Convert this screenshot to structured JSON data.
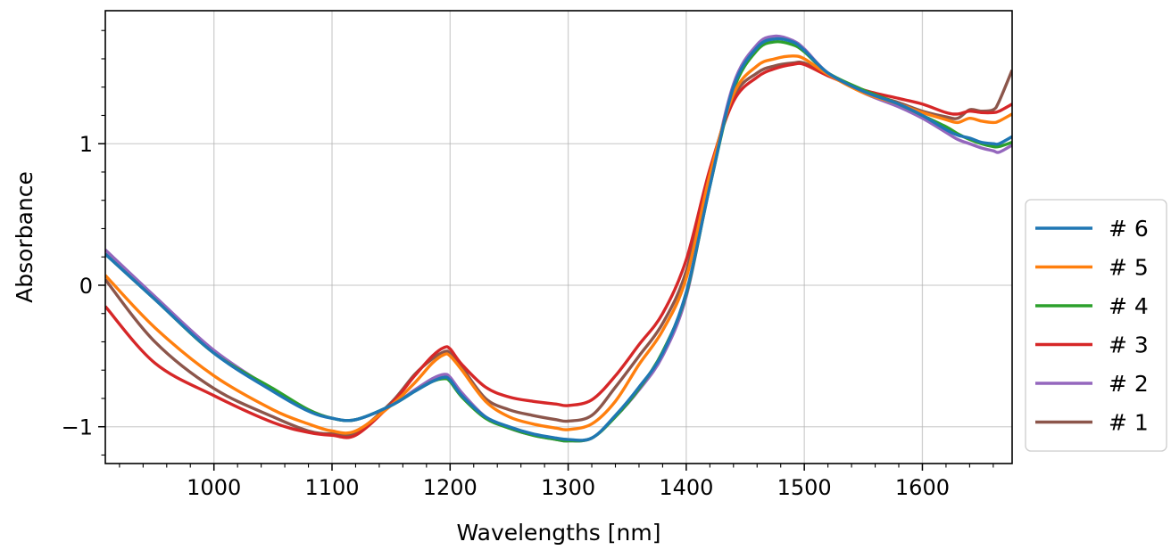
{
  "chart_data": {
    "type": "line",
    "title": "",
    "xlabel": "Wavelengths [nm]",
    "ylabel": "Absorbance",
    "xlim": [
      908,
      1676
    ],
    "ylim": [
      -1.26,
      1.94
    ],
    "xticks": [
      1000,
      1100,
      1200,
      1300,
      1400,
      1500,
      1600
    ],
    "xtick_labels": [
      "1000",
      "1100",
      "1200",
      "1300",
      "1400",
      "1500",
      "1600"
    ],
    "yticks": [
      -1,
      0,
      1
    ],
    "ytick_labels": [
      "−1",
      "0",
      "1"
    ],
    "grid": true,
    "legend_position": "right-outside",
    "x": [
      908,
      950,
      1000,
      1050,
      1080,
      1100,
      1120,
      1150,
      1170,
      1185,
      1195,
      1200,
      1210,
      1230,
      1250,
      1270,
      1290,
      1300,
      1320,
      1340,
      1360,
      1380,
      1400,
      1420,
      1440,
      1460,
      1475,
      1490,
      1500,
      1520,
      1550,
      1580,
      1600,
      1620,
      1630,
      1640,
      1650,
      1660,
      1665,
      1676
    ],
    "series": [
      {
        "name": "# 6",
        "color": "#1f77b4",
        "values": [
          0.22,
          -0.1,
          -0.48,
          -0.75,
          -0.89,
          -0.94,
          -0.95,
          -0.85,
          -0.75,
          -0.68,
          -0.65,
          -0.67,
          -0.78,
          -0.93,
          -1.0,
          -1.05,
          -1.08,
          -1.09,
          -1.08,
          -0.92,
          -0.72,
          -0.48,
          -0.05,
          0.7,
          1.4,
          1.68,
          1.74,
          1.72,
          1.66,
          1.5,
          1.37,
          1.28,
          1.2,
          1.1,
          1.06,
          1.04,
          1.01,
          1.0,
          1.0,
          1.05
        ]
      },
      {
        "name": "# 5",
        "color": "#ff7f0e",
        "values": [
          0.07,
          -0.3,
          -0.64,
          -0.88,
          -0.98,
          -1.03,
          -1.03,
          -0.85,
          -0.69,
          -0.55,
          -0.49,
          -0.5,
          -0.6,
          -0.82,
          -0.93,
          -0.98,
          -1.01,
          -1.02,
          -0.98,
          -0.82,
          -0.56,
          -0.32,
          0.05,
          0.78,
          1.35,
          1.55,
          1.6,
          1.62,
          1.6,
          1.49,
          1.36,
          1.28,
          1.22,
          1.17,
          1.15,
          1.18,
          1.16,
          1.15,
          1.16,
          1.21
        ]
      },
      {
        "name": "# 4",
        "color": "#2ca02c",
        "values": [
          0.22,
          -0.1,
          -0.48,
          -0.73,
          -0.88,
          -0.94,
          -0.95,
          -0.85,
          -0.75,
          -0.68,
          -0.66,
          -0.68,
          -0.79,
          -0.94,
          -1.01,
          -1.06,
          -1.09,
          -1.1,
          -1.08,
          -0.93,
          -0.73,
          -0.47,
          -0.06,
          0.7,
          1.38,
          1.66,
          1.72,
          1.7,
          1.65,
          1.5,
          1.38,
          1.28,
          1.2,
          1.12,
          1.07,
          1.03,
          1.0,
          0.98,
          0.98,
          1.01
        ]
      },
      {
        "name": "# 3",
        "color": "#d62728",
        "values": [
          -0.15,
          -0.55,
          -0.78,
          -0.97,
          -1.04,
          -1.06,
          -1.06,
          -0.84,
          -0.64,
          -0.5,
          -0.44,
          -0.45,
          -0.56,
          -0.72,
          -0.79,
          -0.82,
          -0.84,
          -0.85,
          -0.81,
          -0.64,
          -0.42,
          -0.2,
          0.18,
          0.82,
          1.3,
          1.47,
          1.53,
          1.56,
          1.56,
          1.48,
          1.38,
          1.32,
          1.28,
          1.22,
          1.21,
          1.23,
          1.22,
          1.22,
          1.23,
          1.28
        ]
      },
      {
        "name": "# 2",
        "color": "#9467bd",
        "values": [
          0.25,
          -0.08,
          -0.46,
          -0.74,
          -0.88,
          -0.94,
          -0.95,
          -0.85,
          -0.74,
          -0.66,
          -0.63,
          -0.65,
          -0.76,
          -0.93,
          -1.01,
          -1.06,
          -1.09,
          -1.1,
          -1.08,
          -0.93,
          -0.74,
          -0.5,
          -0.08,
          0.72,
          1.42,
          1.7,
          1.76,
          1.73,
          1.67,
          1.5,
          1.36,
          1.26,
          1.18,
          1.08,
          1.03,
          1.0,
          0.97,
          0.95,
          0.94,
          0.99
        ]
      },
      {
        "name": "# 1",
        "color": "#8c564b",
        "values": [
          0.04,
          -0.4,
          -0.73,
          -0.93,
          -1.03,
          -1.05,
          -1.04,
          -0.83,
          -0.63,
          -0.52,
          -0.47,
          -0.48,
          -0.58,
          -0.8,
          -0.88,
          -0.92,
          -0.95,
          -0.96,
          -0.92,
          -0.72,
          -0.5,
          -0.27,
          0.1,
          0.8,
          1.33,
          1.5,
          1.55,
          1.57,
          1.57,
          1.49,
          1.37,
          1.29,
          1.23,
          1.19,
          1.18,
          1.24,
          1.23,
          1.24,
          1.3,
          1.52
        ]
      }
    ]
  }
}
